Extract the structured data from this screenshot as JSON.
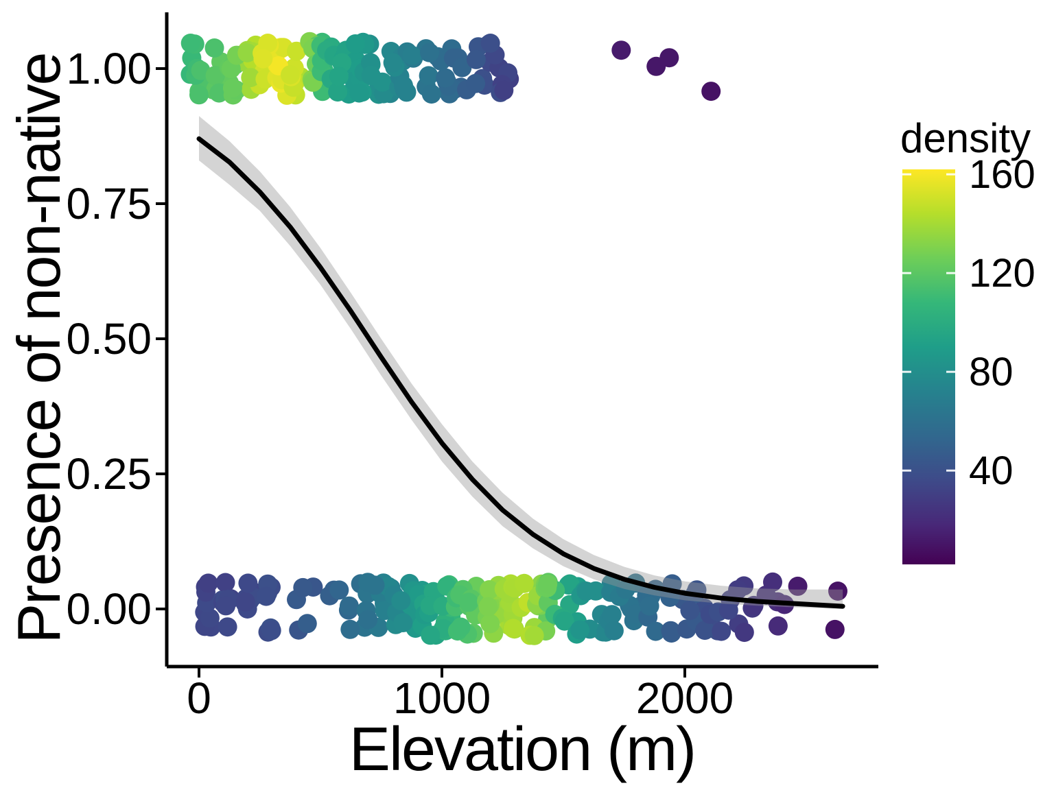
{
  "axes": {
    "x": {
      "title": "Elevation (m)",
      "tick_labels": [
        "0",
        "1000",
        "2000"
      ],
      "tick_values": [
        0,
        1000,
        2000
      ]
    },
    "y": {
      "title": "Presence of non-native",
      "tick_labels": [
        "1.00",
        "0.75",
        "0.50",
        "0.25",
        "0.00"
      ],
      "tick_values": [
        1.0,
        0.75,
        0.5,
        0.25,
        0.0
      ]
    }
  },
  "legend": {
    "title": "density",
    "tick_labels": [
      "160",
      "120",
      "80",
      "40"
    ],
    "tick_values": [
      160,
      120,
      80,
      40
    ],
    "bar_value_range": [
      2,
      162
    ]
  },
  "colors": {
    "background": "#ffffff",
    "axis": "#000000",
    "text": "#000000",
    "curve": "#000000",
    "ribbon": "#999999",
    "ribbon_opacity": 0.42,
    "viridis_stops": [
      "#440154",
      "#482878",
      "#3e4a89",
      "#31688e",
      "#26828e",
      "#1f9e89",
      "#35b779",
      "#6ece58",
      "#b5de2b",
      "#fde725"
    ]
  },
  "chart_data": {
    "type": "scatter",
    "title": "",
    "xlabel": "Elevation (m)",
    "ylabel": "Presence of non-native",
    "color_label": "density",
    "xlim": [
      -130,
      2780
    ],
    "ylim": [
      -0.1,
      1.1
    ],
    "x_data_range_m": [
      0,
      2650
    ],
    "density_color_range": [
      0,
      162
    ],
    "jitter_half_height": 0.05,
    "point_radius_px": 14,
    "series": [
      {
        "name": "presence",
        "level": 1,
        "segments": [
          [
            -40,
            130,
            20
          ],
          [
            130,
            270,
            22
          ],
          [
            260,
            430,
            28
          ],
          [
            420,
            520,
            12
          ],
          [
            510,
            650,
            16
          ],
          [
            640,
            800,
            18
          ],
          [
            790,
            950,
            16
          ],
          [
            940,
            1090,
            14
          ],
          [
            1080,
            1200,
            10
          ],
          [
            1190,
            1280,
            8
          ]
        ],
        "density_profile": [
          [
            -40,
            110
          ],
          [
            0,
            113
          ],
          [
            150,
            124
          ],
          [
            250,
            150
          ],
          [
            330,
            158
          ],
          [
            400,
            148
          ],
          [
            470,
            130
          ],
          [
            520,
            102
          ],
          [
            650,
            88
          ],
          [
            800,
            76
          ],
          [
            950,
            62
          ],
          [
            1100,
            48
          ],
          [
            1200,
            38
          ],
          [
            1280,
            31
          ]
        ],
        "outliers": [
          [
            1738,
            1.034,
            12
          ],
          [
            1882,
            1.004,
            10
          ],
          [
            1936,
            1.02,
            10
          ],
          [
            2108,
            0.958,
            8
          ]
        ]
      },
      {
        "name": "absence",
        "level": 0,
        "segments": [
          [
            20,
            60,
            8
          ],
          [
            95,
            135,
            8
          ],
          [
            185,
            225,
            8
          ],
          [
            265,
            305,
            7
          ],
          [
            390,
            470,
            5
          ],
          [
            530,
            580,
            3
          ],
          [
            600,
            700,
            8
          ],
          [
            690,
            830,
            12
          ],
          [
            820,
            950,
            15
          ],
          [
            940,
            1060,
            17
          ],
          [
            1050,
            1180,
            20
          ],
          [
            1170,
            1300,
            22
          ],
          [
            1290,
            1440,
            20
          ],
          [
            1430,
            1570,
            14
          ],
          [
            1560,
            1700,
            12
          ],
          [
            1690,
            1850,
            12
          ],
          [
            1840,
            2000,
            10
          ],
          [
            1990,
            2150,
            10
          ],
          [
            2140,
            2290,
            8
          ],
          [
            2280,
            2420,
            6
          ]
        ],
        "density_profile": [
          [
            0,
            33
          ],
          [
            250,
            36
          ],
          [
            420,
            44
          ],
          [
            560,
            50
          ],
          [
            650,
            58
          ],
          [
            750,
            68
          ],
          [
            850,
            80
          ],
          [
            950,
            94
          ],
          [
            1050,
            110
          ],
          [
            1150,
            124
          ],
          [
            1250,
            138
          ],
          [
            1360,
            144
          ],
          [
            1430,
            126
          ],
          [
            1500,
            98
          ],
          [
            1600,
            82
          ],
          [
            1700,
            70
          ],
          [
            1800,
            60
          ],
          [
            1900,
            52
          ],
          [
            2000,
            46
          ],
          [
            2100,
            40
          ],
          [
            2200,
            32
          ],
          [
            2300,
            26
          ],
          [
            2400,
            20
          ],
          [
            2650,
            9
          ]
        ],
        "outliers": [
          [
            2465,
            0.042,
            12
          ],
          [
            2630,
            0.033,
            8
          ],
          [
            2618,
            -0.038,
            8
          ]
        ]
      }
    ],
    "logistic_fit": {
      "elevation": [
        0,
        125,
        250,
        375,
        500,
        625,
        750,
        875,
        1000,
        1125,
        1250,
        1375,
        1500,
        1625,
        1750,
        1875,
        2000,
        2150,
        2300,
        2450,
        2650
      ],
      "fit": [
        0.87,
        0.827,
        0.772,
        0.707,
        0.632,
        0.551,
        0.466,
        0.383,
        0.307,
        0.24,
        0.183,
        0.138,
        0.102,
        0.075,
        0.055,
        0.04,
        0.029,
        0.02,
        0.014,
        0.01,
        0.005
      ],
      "lower": [
        0.83,
        0.785,
        0.737,
        0.672,
        0.6,
        0.518,
        0.432,
        0.35,
        0.273,
        0.208,
        0.153,
        0.112,
        0.079,
        0.055,
        0.037,
        0.025,
        0.016,
        0.01,
        0.006,
        0.003,
        0.0
      ],
      "upper": [
        0.912,
        0.866,
        0.81,
        0.744,
        0.668,
        0.585,
        0.5,
        0.417,
        0.342,
        0.273,
        0.215,
        0.167,
        0.129,
        0.1,
        0.078,
        0.062,
        0.051,
        0.043,
        0.038,
        0.036,
        0.036
      ]
    }
  }
}
